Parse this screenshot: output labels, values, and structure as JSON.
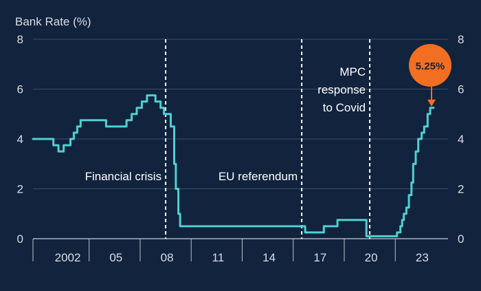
{
  "chart_data": {
    "type": "line",
    "title": "",
    "ylabel": "Bank Rate (%)",
    "xlabel": "",
    "ylim": [
      0,
      8
    ],
    "xlim": [
      2000.2,
      2024.6
    ],
    "y_ticks": [
      "0",
      "2",
      "4",
      "6",
      "8"
    ],
    "x_tick_labels": [
      "2002",
      "05",
      "08",
      "11",
      "14",
      "17",
      "20",
      "23"
    ],
    "x_tick_positions": [
      2002.0,
      2005.0,
      2008.0,
      2011.0,
      2014.0,
      2017.0,
      2020.0,
      2023.0
    ],
    "x_tick_marks": [
      2000.2,
      2003.5,
      2006.5,
      2009.5,
      2012.5,
      2015.5,
      2018.5,
      2021.5
    ],
    "grid": true,
    "line_color": "#4ed1d1",
    "series": [
      {
        "name": "",
        "step": true,
        "points": [
          [
            2000.2,
            4.0
          ],
          [
            2001.4,
            3.75
          ],
          [
            2001.7,
            3.5
          ],
          [
            2002.0,
            3.75
          ],
          [
            2002.4,
            4.0
          ],
          [
            2002.6,
            4.25
          ],
          [
            2002.8,
            4.5
          ],
          [
            2003.0,
            4.75
          ],
          [
            2004.0,
            4.75
          ],
          [
            2004.5,
            4.5
          ],
          [
            2005.7,
            4.75
          ],
          [
            2006.0,
            5.0
          ],
          [
            2006.3,
            5.25
          ],
          [
            2006.6,
            5.5
          ],
          [
            2006.9,
            5.75
          ],
          [
            2007.4,
            5.5
          ],
          [
            2007.7,
            5.25
          ],
          [
            2007.9,
            5.0
          ],
          [
            2008.3,
            4.5
          ],
          [
            2008.5,
            3.0
          ],
          [
            2008.6,
            2.0
          ],
          [
            2008.75,
            1.0
          ],
          [
            2008.85,
            0.5
          ],
          [
            2016.2,
            0.25
          ],
          [
            2017.3,
            0.5
          ],
          [
            2018.1,
            0.75
          ],
          [
            2019.8,
            0.1
          ],
          [
            2021.6,
            0.25
          ],
          [
            2021.8,
            0.5
          ],
          [
            2021.9,
            0.75
          ],
          [
            2022.0,
            1.0
          ],
          [
            2022.15,
            1.25
          ],
          [
            2022.3,
            1.75
          ],
          [
            2022.45,
            2.25
          ],
          [
            2022.55,
            3.0
          ],
          [
            2022.7,
            3.5
          ],
          [
            2022.85,
            4.0
          ],
          [
            2023.05,
            4.25
          ],
          [
            2023.2,
            4.5
          ],
          [
            2023.4,
            5.0
          ],
          [
            2023.55,
            5.25
          ],
          [
            2023.75,
            5.25
          ]
        ]
      }
    ],
    "events": [
      {
        "x": 2008.0,
        "label_lines": [
          "Financial crisis"
        ],
        "label_side": "left"
      },
      {
        "x": 2016.0,
        "label_lines": [
          "EU referendum"
        ],
        "label_side": "left"
      },
      {
        "x": 2020.0,
        "label_lines": [
          "MPC",
          "response",
          "to Covid"
        ],
        "label_side": "left"
      }
    ],
    "callout": {
      "text": "5.25%",
      "x": 2023.55,
      "y": 5.25,
      "color": "#f26f22"
    }
  }
}
